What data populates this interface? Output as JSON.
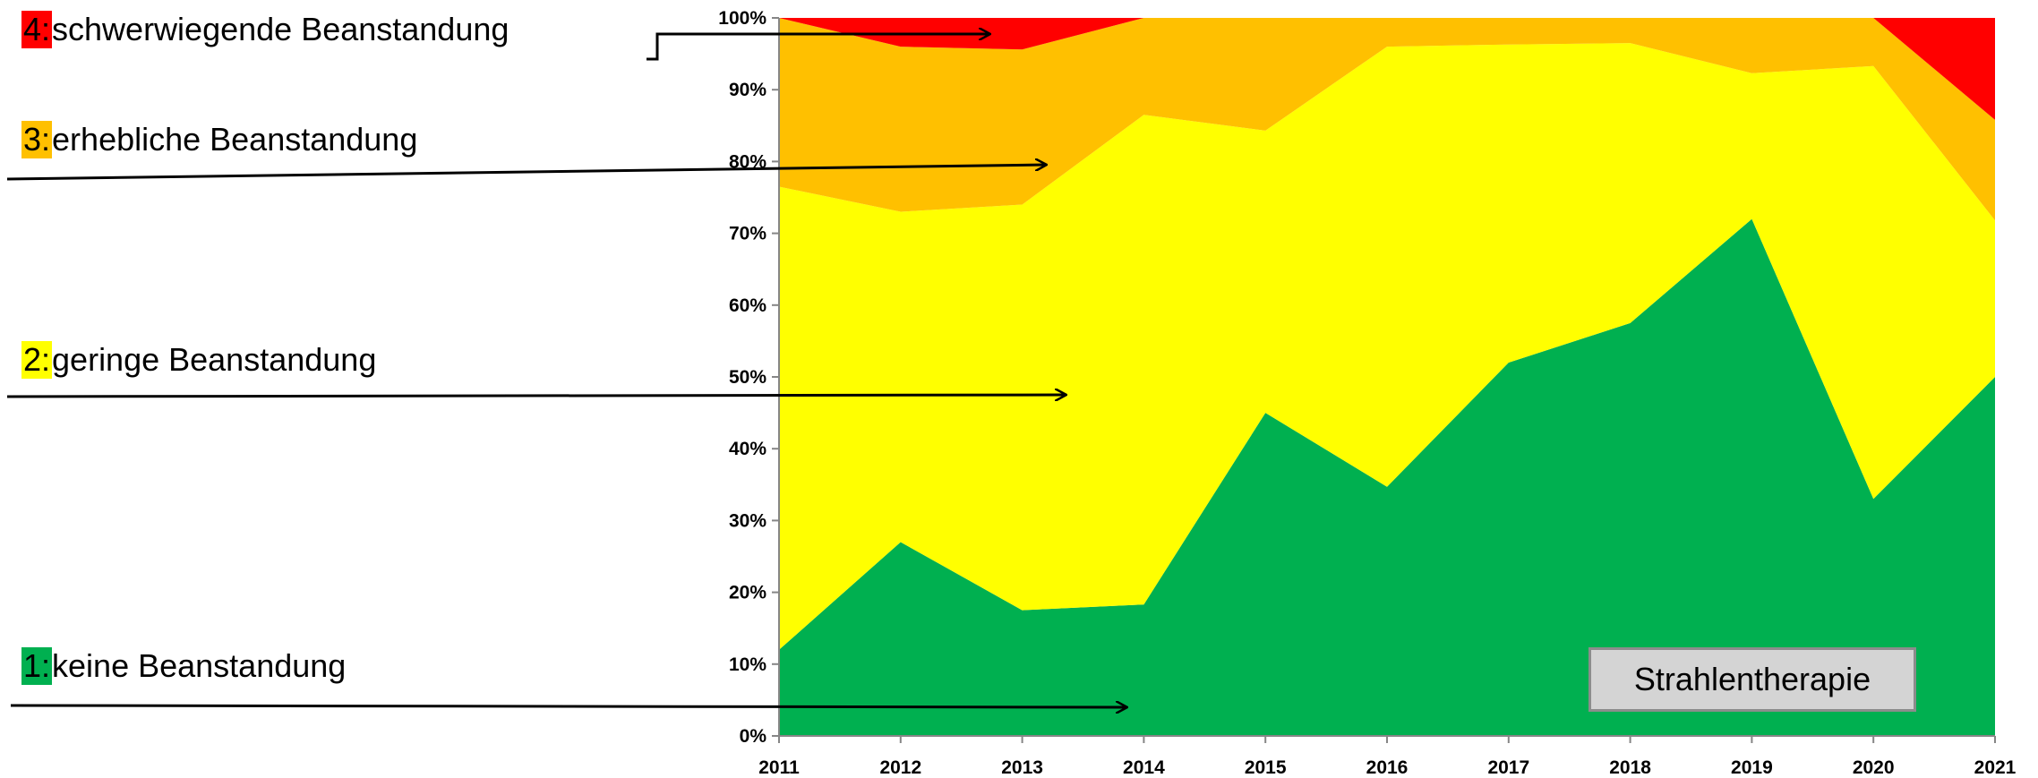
{
  "legend": [
    {
      "code": "4:",
      "label": "schwerwiegende Beanstandung",
      "color": "#ff0000"
    },
    {
      "code": "3:",
      "label": "erhebliche Beanstandung",
      "color": "#ffc000"
    },
    {
      "code": "2:",
      "label": "geringe Beanstandung",
      "color": "#ffff00"
    },
    {
      "code": "1:",
      "label": "keine Beanstandung",
      "color": "#00b050"
    }
  ],
  "annotation": "Strahlentherapie",
  "chart_data": {
    "type": "area",
    "stacked": true,
    "x": [
      "2011",
      "2012",
      "2013",
      "2014",
      "2015",
      "2016",
      "2017",
      "2018",
      "2019",
      "2020",
      "2021"
    ],
    "ylim": [
      0,
      100
    ],
    "ytick_labels": [
      "0%",
      "10%",
      "20%",
      "30%",
      "40%",
      "50%",
      "60%",
      "70%",
      "80%",
      "90%",
      "100%"
    ],
    "series": [
      {
        "name": "1: keine Beanstandung",
        "color": "#00b050",
        "values": [
          12,
          27,
          17.5,
          18.3,
          45,
          34.7,
          52,
          57.5,
          72,
          33,
          50
        ]
      },
      {
        "name": "2: geringe Beanstandung",
        "color": "#ffff00",
        "values": [
          64.5,
          46,
          56.5,
          68.2,
          39.3,
          61.3,
          44.3,
          39,
          20.3,
          60.3,
          21.8
        ]
      },
      {
        "name": "3: erhebliche Beanstandung",
        "color": "#ffc000",
        "values": [
          23.5,
          23,
          21.6,
          13.5,
          15.7,
          4,
          3.7,
          3.5,
          7.7,
          6.7,
          14
        ]
      },
      {
        "name": "4: schwerwiegende Beanstandung",
        "color": "#ff0000",
        "values": [
          0,
          4,
          4.4,
          0,
          0,
          0,
          0,
          0,
          0,
          0,
          14.2
        ]
      }
    ]
  }
}
